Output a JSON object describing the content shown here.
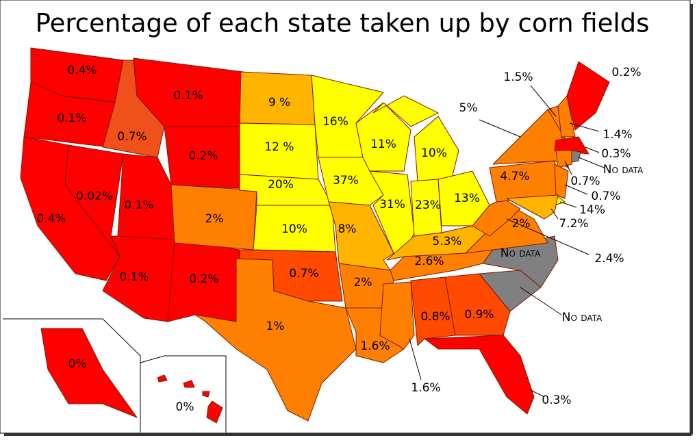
{
  "title": "Percentage of each state taken up by corn fields",
  "regions": [
    {
      "label": "0.4%",
      "color": "#ff0000"
    },
    {
      "label": "0.1%",
      "color": "#ff0000"
    },
    {
      "label": "0.7%",
      "color": "#f0501a"
    },
    {
      "label": "0.1%",
      "color": "#ff0000"
    },
    {
      "label": "0.2%",
      "color": "#ff0000"
    },
    {
      "label": "0.4%",
      "color": "#ff0000"
    },
    {
      "label": "0.02%",
      "color": "#ff0000"
    },
    {
      "label": "0.1%",
      "color": "#ff0000"
    },
    {
      "label": "0.1%",
      "color": "#ff0000"
    },
    {
      "label": "0.2%",
      "color": "#ff0000"
    },
    {
      "label": "2%",
      "color": "#ff8000"
    },
    {
      "label": "9 %",
      "color": "#ffb400"
    },
    {
      "label": "12 %",
      "color": "#ffff00"
    },
    {
      "label": "20%",
      "color": "#ffff00"
    },
    {
      "label": "10%",
      "color": "#ffff00"
    },
    {
      "label": "0.7%",
      "color": "#ff4a00"
    },
    {
      "label": "1%",
      "color": "#ff8000"
    },
    {
      "label": "16%",
      "color": "#ffff00"
    },
    {
      "label": "37%",
      "color": "#ffff00"
    },
    {
      "label": "8%",
      "color": "#ffb400"
    },
    {
      "label": "11%",
      "color": "#ffff00"
    },
    {
      "label": "31%",
      "color": "#ffff00"
    },
    {
      "label": "10%",
      "color": "#ffff00"
    },
    {
      "label": "23%",
      "color": "#ffff00"
    },
    {
      "label": "13%",
      "color": "#ffff00"
    },
    {
      "label": "5.3%",
      "color": "#ffb400"
    },
    {
      "label": "2.6%",
      "color": "#ff8000"
    },
    {
      "label": "2%",
      "color": "#ff8000"
    },
    {
      "label": "1.6%",
      "color": "#ff8000"
    },
    {
      "label": "1.6%",
      "color": "#ff8000"
    },
    {
      "label": "0.8%",
      "color": "#ff4a00"
    },
    {
      "label": "0.9%",
      "color": "#ff4a00"
    },
    {
      "label": "0.3%",
      "color": "#ff0000"
    },
    {
      "label": "No data",
      "color": "#808080"
    },
    {
      "label": "No data",
      "color": "#808080"
    },
    {
      "label": "2%",
      "color": "#ff8000"
    },
    {
      "label": "2.4%",
      "color": "#ff8000"
    },
    {
      "label": "4.7%",
      "color": "#ff8000"
    },
    {
      "label": "5%",
      "color": "#ff8000"
    },
    {
      "label": "1.5%",
      "color": "#ff8000"
    },
    {
      "label": "1.4%",
      "color": "#ff8000"
    },
    {
      "label": "0.2%",
      "color": "#ff0000"
    },
    {
      "label": "0.3%",
      "color": "#ff0000"
    },
    {
      "label": "0.7%",
      "color": "#ff8000"
    },
    {
      "label": "No data",
      "color": "#808080"
    },
    {
      "label": "0.7%",
      "color": "#ff8000"
    },
    {
      "label": "14%",
      "color": "#ffff00"
    },
    {
      "label": "7.2%",
      "color": "#ffb400"
    },
    {
      "label": "0%",
      "color": "#ff0000"
    },
    {
      "label": "0%",
      "color": "#ff0000"
    }
  ]
}
